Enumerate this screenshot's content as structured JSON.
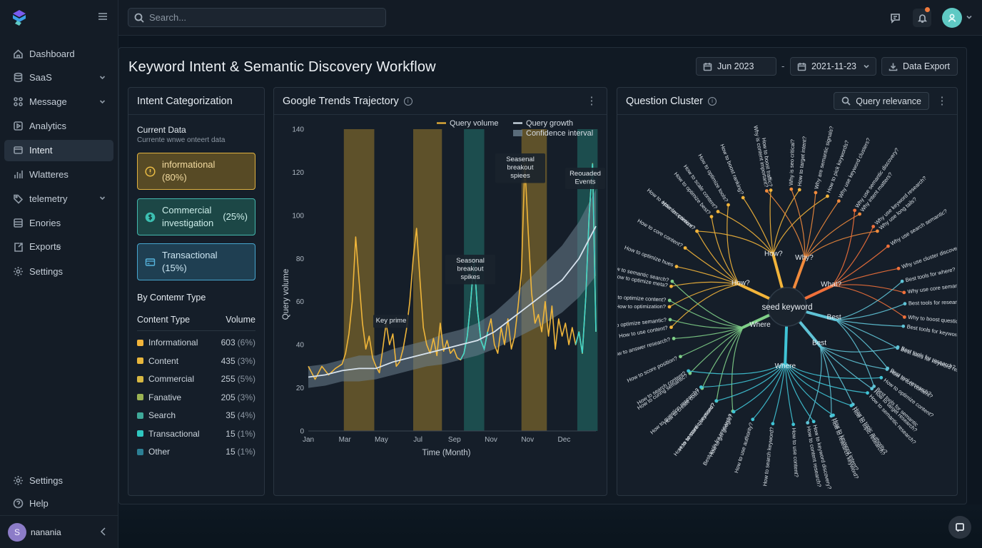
{
  "app": {
    "search_placeholder": "Search..."
  },
  "sidebar": {
    "items": [
      {
        "label": "Dashboard",
        "icon": "home-icon",
        "chevron": false,
        "active": false
      },
      {
        "label": "SaaS",
        "icon": "database-icon",
        "chevron": true,
        "active": false
      },
      {
        "label": "Message",
        "icon": "grid-icon",
        "chevron": true,
        "active": false
      },
      {
        "label": "Analytics",
        "icon": "play-icon",
        "chevron": false,
        "active": false
      },
      {
        "label": "Intent",
        "icon": "layers-icon",
        "chevron": false,
        "active": true
      },
      {
        "label": "Wlatteres",
        "icon": "bar-chart-icon",
        "chevron": false,
        "active": false
      },
      {
        "label": "telemetry",
        "icon": "tag-icon",
        "chevron": true,
        "active": false
      },
      {
        "label": "Enories",
        "icon": "list-icon",
        "chevron": false,
        "active": false
      },
      {
        "label": "Exportꞩ",
        "icon": "export-icon",
        "chevron": false,
        "active": false
      },
      {
        "label": "Settings",
        "icon": "gear-icon",
        "chevron": false,
        "active": false
      }
    ],
    "bottom": [
      {
        "label": "Settings",
        "icon": "gear-icon"
      },
      {
        "label": "Help",
        "icon": "help-icon"
      }
    ],
    "user": {
      "initial": "S",
      "name": "nanania"
    }
  },
  "header": {
    "title": "Keyword Intent & Semantic Discovery Workflow",
    "date_from": "Jun 2023",
    "date_sep": "-",
    "date_to": "2021-11-23",
    "export_label": "Data Export"
  },
  "intent_panel": {
    "title": "Intent Categorization",
    "current_title": "Current Data",
    "current_sub": "Currente wnwe onteert data",
    "cards": [
      {
        "label": "informational",
        "pct": "(80%)"
      },
      {
        "label": "Commercial investigation",
        "pct": "(25%)"
      },
      {
        "label": "Transactional",
        "pct": "(15%)"
      }
    ],
    "by_content_title": "By Contemr Type",
    "col_type": "Content Type",
    "col_volume": "Volume",
    "rows": [
      {
        "type": "Informational",
        "volume": "603",
        "pct": "(6%)",
        "color": "#f2b43a"
      },
      {
        "type": "Content",
        "volume": "435",
        "pct": "(3%)",
        "color": "#e8b63c"
      },
      {
        "type": "Commercial",
        "volume": "255",
        "pct": "(5%)",
        "color": "#d7b843"
      },
      {
        "type": "Fanative",
        "volume": "205",
        "pct": "(3%)",
        "color": "#9bb353"
      },
      {
        "type": "Search",
        "volume": "35",
        "pct": "(4%)",
        "color": "#3fa999"
      },
      {
        "type": "Transactional",
        "volume": "15",
        "pct": "(1%)",
        "color": "#2fc7c0"
      },
      {
        "type": "Other",
        "volume": "15",
        "pct": "(1%)",
        "color": "#2c7f94"
      }
    ]
  },
  "trends_panel": {
    "title": "Google Trends Trajectory",
    "annotations": [
      "Seasenal breakout spiees",
      "Reouaded Events",
      "Seasonal breakout spikes",
      "Key prime"
    ]
  },
  "chart_data": {
    "type": "line",
    "title": "",
    "xlabel": "Time (Month)",
    "ylabel": "Query volume",
    "ylim": [
      0,
      140
    ],
    "yticks": [
      0,
      20,
      40,
      60,
      80,
      100,
      120,
      140
    ],
    "x_tick_labels": [
      "Jan",
      "Mar",
      "May",
      "Jul",
      "Sep",
      "Nov",
      "Nov",
      "Dec"
    ],
    "legend": [
      "Query volume",
      "Query growth",
      "Confidence interval"
    ],
    "legend_position": "top-right",
    "colors": {
      "volume": "#f0b63a",
      "growth": "#d7e3ee",
      "ci": "#6b7f8e",
      "band_gold": "#6b5a2a",
      "band_teal": "#1f5e5b",
      "teal": "#3fd6cc"
    },
    "highlight_bands": [
      {
        "from": 1.05,
        "to": 1.95,
        "color": "gold"
      },
      {
        "from": 3.1,
        "to": 3.95,
        "color": "gold"
      },
      {
        "from": 4.6,
        "to": 5.2,
        "color": "teal"
      },
      {
        "from": 6.3,
        "to": 7.05,
        "color": "gold"
      },
      {
        "from": 7.95,
        "to": 8.55,
        "color": "teal"
      }
    ],
    "series": [
      {
        "name": "Query volume",
        "x": [
          0,
          0.2,
          0.4,
          0.6,
          0.8,
          1.0,
          1.1,
          1.2,
          1.3,
          1.4,
          1.5,
          1.6,
          1.7,
          1.8,
          1.9,
          2.0,
          2.1,
          2.2,
          2.3,
          2.4,
          2.5,
          2.6,
          2.7,
          2.8,
          2.9,
          3.0,
          3.1,
          3.2,
          3.3,
          3.4,
          3.5,
          3.6,
          3.7,
          3.8,
          3.9,
          4.0,
          4.1,
          4.2,
          4.3,
          4.4,
          4.5,
          4.6,
          4.7,
          4.8,
          4.9,
          5.0,
          5.1,
          5.2,
          5.3,
          5.4,
          5.5,
          5.6,
          5.7,
          5.8,
          5.9,
          6.0,
          6.1,
          6.2,
          6.3,
          6.4,
          6.5,
          6.6,
          6.7,
          6.8,
          6.9,
          7.0,
          7.1,
          7.2,
          7.3,
          7.4,
          7.5,
          7.6,
          7.7,
          7.8,
          7.9,
          8.0,
          8.1,
          8.2,
          8.3,
          8.4,
          8.5
        ],
        "y": [
          30,
          24,
          30,
          26,
          29,
          31,
          36,
          45,
          60,
          90,
          70,
          50,
          38,
          44,
          34,
          30,
          27,
          38,
          50,
          40,
          45,
          30,
          32,
          38,
          47,
          60,
          80,
          94,
          70,
          48,
          40,
          36,
          43,
          35,
          50,
          37,
          42,
          36,
          38,
          34,
          33,
          36,
          44,
          60,
          80,
          56,
          42,
          38,
          46,
          52,
          40,
          36,
          48,
          40,
          52,
          38,
          44,
          58,
          74,
          124,
          92,
          64,
          50,
          54,
          46,
          60,
          44,
          58,
          38,
          52,
          44,
          50,
          40,
          48,
          40,
          46,
          36,
          62,
          100,
          124,
          46
        ],
        "color": "#f0b63a"
      },
      {
        "name": "Query growth",
        "x": [
          0,
          0.5,
          1.0,
          1.5,
          2.0,
          2.5,
          3.0,
          3.5,
          4.0,
          4.5,
          5.0,
          5.5,
          6.0,
          6.5,
          7.0,
          7.5,
          8.0,
          8.5
        ],
        "y": [
          25,
          26,
          28,
          29,
          29,
          32,
          34,
          36,
          38,
          40,
          42,
          46,
          52,
          58,
          64,
          70,
          80,
          95
        ],
        "color": "#d7e3ee"
      }
    ],
    "confidence_interval": {
      "x": [
        0,
        0.5,
        1.0,
        1.5,
        2.0,
        2.5,
        3.0,
        3.5,
        4.0,
        4.5,
        5.0,
        5.5,
        6.0,
        6.5,
        7.0,
        7.5,
        8.0,
        8.5
      ],
      "lower": [
        20,
        21,
        23,
        23,
        24,
        26,
        28,
        30,
        31,
        33,
        35,
        38,
        42,
        46,
        50,
        55,
        62,
        72
      ],
      "upper": [
        30,
        31,
        33,
        35,
        35,
        38,
        40,
        42,
        45,
        47,
        50,
        55,
        62,
        70,
        78,
        86,
        97,
        112
      ]
    }
  },
  "question_panel": {
    "title": "Question Cluster",
    "query_label": "Query relevance",
    "center": "seed keyword",
    "branches": [
      {
        "label": "How?",
        "color": "#f2b43a",
        "leaves": [
          "How to optimize content?",
          "How to scale content?",
          "How to boost ranking?",
          "How to boost traffic?",
          "How to target intent?",
          "How to pick keywords?"
        ]
      },
      {
        "label": "Why?",
        "color": "#f08a3c",
        "leaves": [
          "Why is content important?",
          "Why is seo critical?",
          "Why are semantic signals?",
          "Why use keyword clusters?",
          "Why intent matters?",
          "Why use long tails?"
        ]
      },
      {
        "label": "What?",
        "color": "#f0703a",
        "leaves": [
          "Why use semantic discovery?",
          "Why use keyword research?",
          "Why use search semantic?",
          "Why use cluster discovery?",
          "Why use core semantics?",
          "Why to boost question?"
        ]
      },
      {
        "label": "How?",
        "color": "#f2b43a",
        "leaves": [
          "How to use content?",
          "How to optimization?",
          "How to optimize meta?",
          "How to optimize hues",
          "How to core content?",
          "How to optimize?",
          "How to optimize best?",
          "How to optimize tools?"
        ]
      },
      {
        "label": "Best",
        "color": "#5fc3d6",
        "leaves": [
          "Best tools for where?",
          "Best tools for research?",
          "Best tools for keyword research?",
          "Best tools for keyword research?",
          "Best tool research?",
          "Best tools for semantic"
        ]
      },
      {
        "label": "Best",
        "color": "#5fc3d6",
        "leaves": [
          "Best tools for research?",
          "How to tool content?",
          "How to target research?",
          "How to topic authority?",
          "How to research keyword?",
          "How to content research?"
        ]
      },
      {
        "label": "Where",
        "color": "#7fcf88",
        "leaves": [
          "Best tools for research?",
          "How to store questions?",
          "How to create cost?",
          "How to curing semantic?",
          "How to score position?",
          "How to answer research?",
          "How to optimize semantic?",
          "How to optimize content?",
          "How to semantic search?"
        ]
      },
      {
        "label": "Where",
        "color": "#40c4d6",
        "leaves": [
          "How to optimize content?",
          "How to semantic research?",
          "How to topic research?",
          "How to keyword intent?",
          "How to keyword discovery?",
          "How to use content?",
          "How to search keyword?",
          "How to use authority?",
          "How to get google?",
          "How to semantic keyword?",
          "How to question research?",
          "How to search content?"
        ]
      }
    ]
  }
}
